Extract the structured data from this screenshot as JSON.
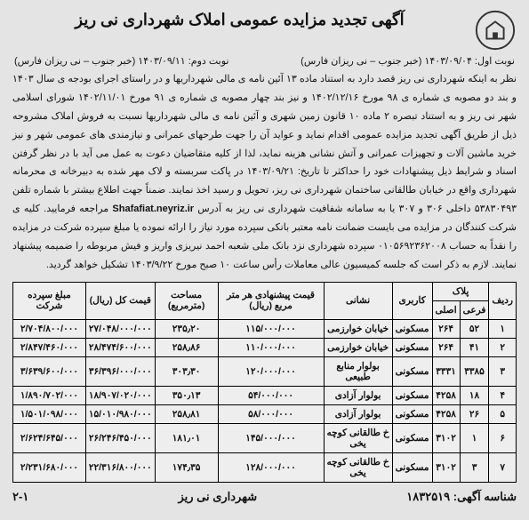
{
  "title": "آگهی تجدید مزایده عمومی املاک شهرداری نی ریز",
  "date1": "نوبت اول: ۱۴۰۳/۰۹/۰۴ (خبر جنوب – نی ریزان فارس)",
  "date2": "نوبت دوم: ۱۴۰۳/۰۹/۱۱ (خبر جنوب – نی ریزان فارس)",
  "body": "نظر به اینکه شهرداری نی ریز قصد دارد به استناد ماده ۱۳ آئین نامه ی مالی شهرداریها و در راستای اجرای بودجه ی سال ۱۴۰۳ و بند دو مصوبه ی شماره ی ۹۸ مورخ ۱۴۰۲/۱۲/۱۶ و نیز بند چهار مصوبه ی شماره ی ۹۱ مورخ ۱۴۰۲/۱۱/۰۱ شورای اسلامی شهر نی ریز و به استناد تبصره ۲ ماده ۱۰ قانون زمین شهری و آئین نامه ی مالی شهرداریها نسبت به فروش املاک مشروحه ذیل از طریق آگهی تجدید مزایده عمومی اقدام نماید و عواید آن را جهت طرحهای عمرانی و نیازمندی های عمومی شهر و نیز خرید ماشین آلات و تجهیزات عمرانی و آتش نشانی هزینه نماید، لذا از کلیه متقاضیان دعوت به عمل می آید با در نظر گرفتن اسناد و شرایط ذیل پیشنهادات خود را حداکثر تا تاریخ: ۱۴۰۳/۰۹/۲۱ در پاکت سربسته و لاک مهر شده به دبیرخانه ی محرمانه شهرداری واقع در خیابان طالقانی ساختمان شهرداری نی ریز، تحویل و رسید اخذ نمایند. ضمناً جهت اطلاع بیشتر با شماره تلفن ۵۳۸۳۰۴۹۳ داخلی ۳۰۶ و ۳۰۷ یا به سامانه شفافیت شهرداری نی ریز به آدرس <b>Shafafiat.neyriz.ir</b> مراجعه فرمایید. کلیه ی شرکت کنندگان در مزایده می بایست ضمانت نامه معتبر بانکی سپرده مورد نیاز را ارائه نموده یا مبلغ سپرده شرکت در مزایده را نقداً به حساب ۰۱۰۵۶۹۲۳۶۲۰۰۸ سپرده شهرداری نزد بانک ملی شعبه احمد نیریزی واریز و فیش مربوطه را ضمیمه پیشنهاد نمایند. لازم به ذکر است که جلسه کمیسیون عالی معاملات رأس ساعت ۱۰ صبح مورخ ۱۴۰۳/۹/۲۲ تشکیل خواهد گردید.",
  "table": {
    "headers": {
      "row": "ردیف",
      "plak": "پلاک",
      "plak_sub1": "فرعی",
      "plak_sub2": "اصلی",
      "use": "کاربری",
      "addr": "نشانی",
      "price_m": "قیمت پیشنهادی هر متر مربع (ریال)",
      "area": "مساحت (مترمربع)",
      "total": "قیمت کل (ریال)",
      "deposit": "مبلغ سپرده شرکت"
    },
    "rows": [
      {
        "n": "۱",
        "f": "۵۲",
        "a": "۲۶۴",
        "use": "مسکونی",
        "addr": "خیابان خوارزمی",
        "pm": "۱۱۵/۰۰۰/۰۰۰",
        "area": "۲۳۵٫۲۰",
        "total": "۲۷/۰۴۸/۰۰۰/۰۰۰",
        "dep": "۲/۷۰۴/۸۰۰/۰۰۰"
      },
      {
        "n": "۲",
        "f": "۴۱",
        "a": "۲۶۴",
        "use": "مسکونی",
        "addr": "خیابان خوارزمی",
        "pm": "۱۱۰/۰۰۰/۰۰۰",
        "area": "۲۵۸٫۸۶",
        "total": "۲۸/۴۷۴/۶۰۰/۰۰۰",
        "dep": "۲/۸۴۷/۴۶۰/۰۰۰"
      },
      {
        "n": "۳",
        "f": "۳۳۸۵",
        "a": "۳۳۳۱",
        "use": "مسکونی",
        "addr": "بولوار منابع طبیعی",
        "pm": "۱۲۰/۰۰۰/۰۰۰",
        "area": "۳۰۳٫۳۰",
        "total": "۳۶/۳۹۶/۰۰۰/۰۰۰",
        "dep": "۳/۶۳۹/۶۰۰/۰۰۰"
      },
      {
        "n": "۴",
        "f": "۱۸",
        "a": "۴۲۵۸",
        "use": "مسکونی",
        "addr": "بولوار آزادی",
        "pm": "۵۴/۰۰۰/۰۰۰",
        "area": "۳۵۰٫۱۳",
        "total": "۱۸/۹۰۷/۰۲۰/۰۰۰",
        "dep": "۱/۸۹۰/۷۰۲/۰۰۰"
      },
      {
        "n": "۵",
        "f": "۲۶",
        "a": "۴۲۵۸",
        "use": "مسکونی",
        "addr": "بولوار آزادی",
        "pm": "۵۸/۰۰۰/۰۰۰",
        "area": "۲۵۸٫۸۱",
        "total": "۱۵/۰۱۰/۹۸۰/۰۰۰",
        "dep": "۱/۵۰۱/۰۹۸/۰۰۰"
      },
      {
        "n": "۶",
        "f": "۱",
        "a": "۳۱۰۲",
        "use": "مسکونی",
        "addr": "خ طالقانی کوچه یخی",
        "pm": "۱۴۵/۰۰۰/۰۰۰",
        "area": "۱۸۱٫۰۱",
        "total": "۲۶/۲۴۶/۴۵۰/۰۰۰",
        "dep": "۲/۶۲۴/۶۴۵/۰۰۰"
      },
      {
        "n": "۷",
        "f": "۳",
        "a": "۳۱۰۲",
        "use": "مسکونی",
        "addr": "خ طالقانی کوچه یخی",
        "pm": "۱۲۸/۰۰۰/۰۰۰",
        "area": "۱۷۴٫۳۵",
        "total": "۲۲/۳۱۶/۸۰۰/۰۰۰",
        "dep": "۲/۲۳۱/۶۸۰/۰۰۰"
      }
    ]
  },
  "footer": {
    "id_label": "شناسه آگهی:",
    "id_value": "۱۸۳۲۵۱۹",
    "center": "شهرداری نی ریز",
    "page": "۲-۱"
  }
}
